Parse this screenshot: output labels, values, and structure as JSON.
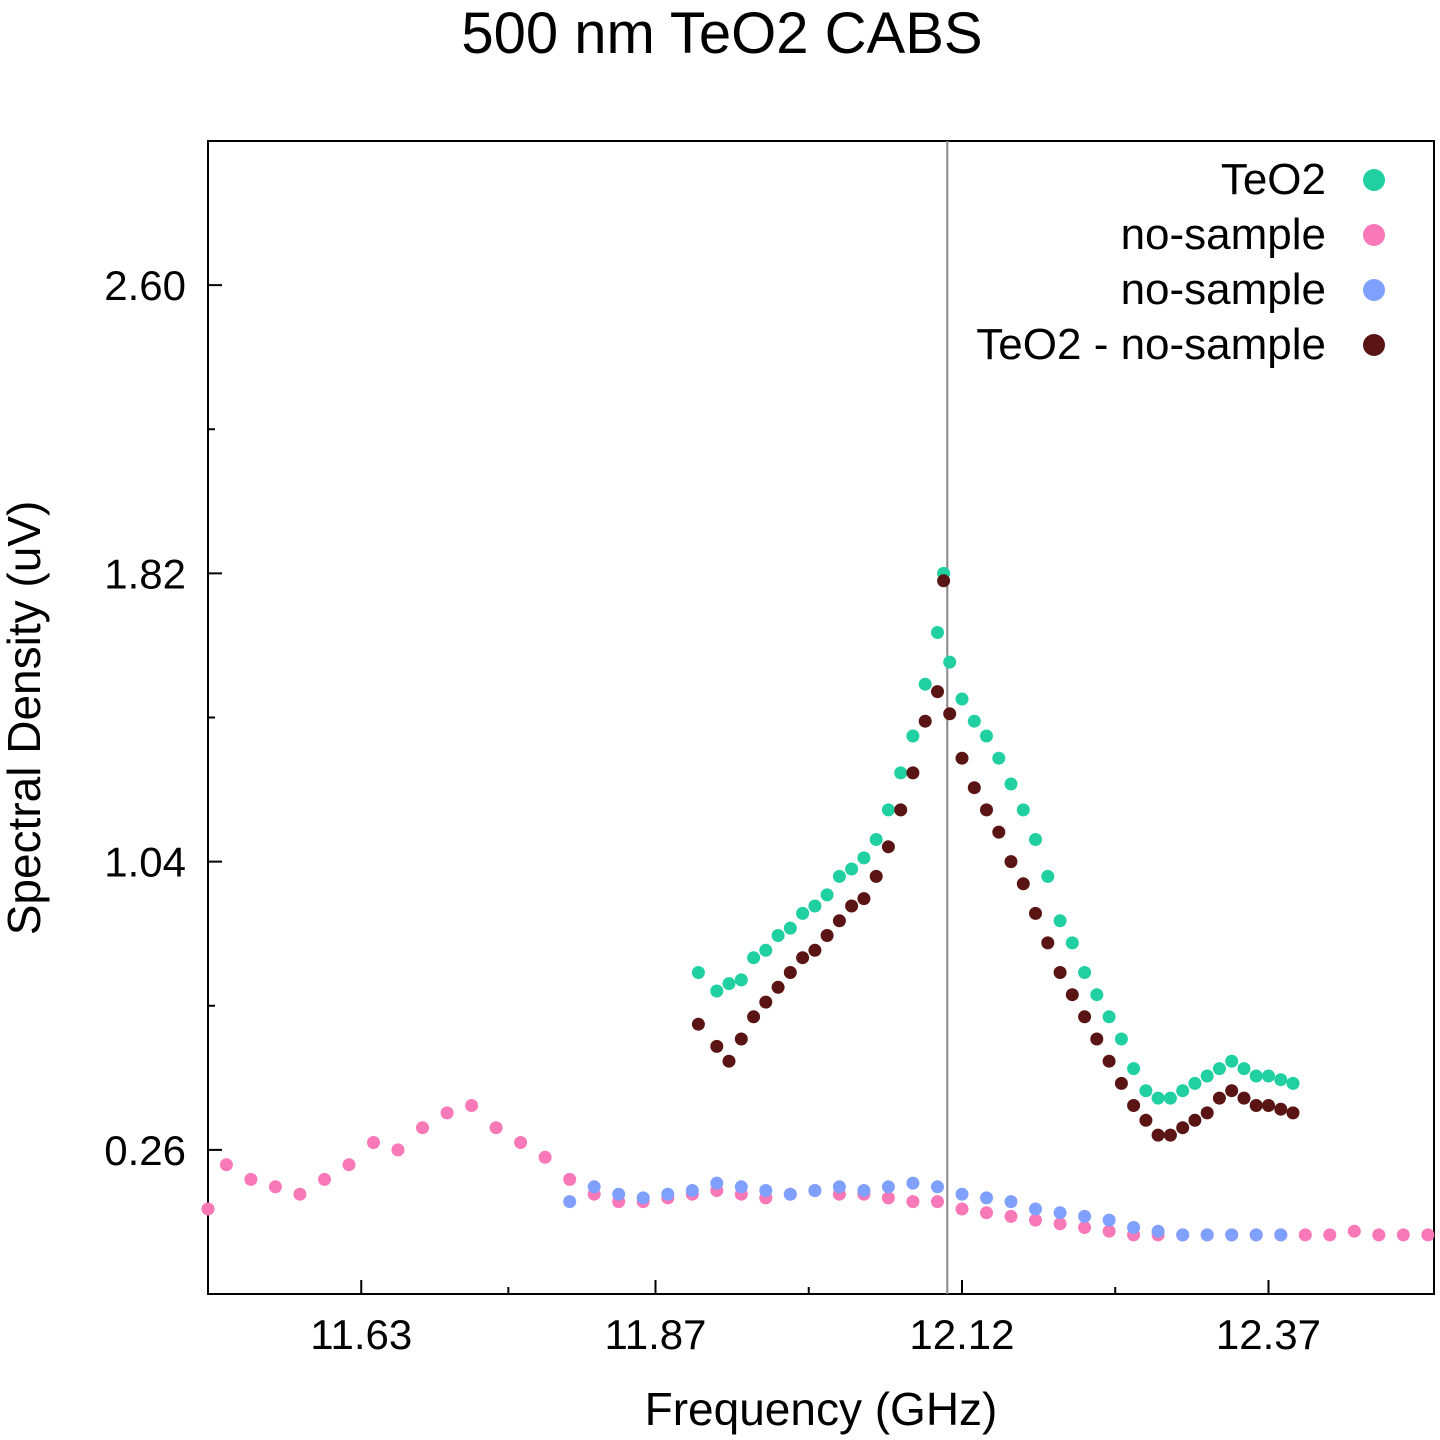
{
  "chart_data": {
    "type": "scatter",
    "title": "500 nm TeO2 CABS",
    "xlabel": "Frequency (GHz)",
    "ylabel": "Spectral Density (uV)",
    "xlim": [
      11.505,
      12.505
    ],
    "ylim": [
      -0.13,
      2.99
    ],
    "x_ticks": [
      "11.63",
      "11.87",
      "12.12",
      "12.37"
    ],
    "y_ticks": [
      "0.26",
      "1.04",
      "1.82",
      "2.60"
    ],
    "grid": false,
    "legend_position": "top-right",
    "vertical_line_x": 12.108,
    "series": [
      {
        "name": "TeO2",
        "color": "#20d0a0",
        "points": [
          [
            11.905,
            0.74
          ],
          [
            11.92,
            0.69
          ],
          [
            11.93,
            0.71
          ],
          [
            11.94,
            0.72
          ],
          [
            11.95,
            0.78
          ],
          [
            11.96,
            0.8
          ],
          [
            11.97,
            0.84
          ],
          [
            11.98,
            0.86
          ],
          [
            11.99,
            0.9
          ],
          [
            12.0,
            0.92
          ],
          [
            12.01,
            0.95
          ],
          [
            12.02,
            1.0
          ],
          [
            12.03,
            1.02
          ],
          [
            12.04,
            1.05
          ],
          [
            12.05,
            1.1
          ],
          [
            12.06,
            1.18
          ],
          [
            12.07,
            1.28
          ],
          [
            12.08,
            1.38
          ],
          [
            12.09,
            1.52
          ],
          [
            12.1,
            1.66
          ],
          [
            12.105,
            1.82
          ],
          [
            12.11,
            1.58
          ],
          [
            12.12,
            1.48
          ],
          [
            12.13,
            1.42
          ],
          [
            12.14,
            1.38
          ],
          [
            12.15,
            1.32
          ],
          [
            12.16,
            1.25
          ],
          [
            12.17,
            1.18
          ],
          [
            12.18,
            1.1
          ],
          [
            12.19,
            1.0
          ],
          [
            12.2,
            0.88
          ],
          [
            12.21,
            0.82
          ],
          [
            12.22,
            0.74
          ],
          [
            12.23,
            0.68
          ],
          [
            12.24,
            0.62
          ],
          [
            12.25,
            0.56
          ],
          [
            12.26,
            0.48
          ],
          [
            12.27,
            0.42
          ],
          [
            12.28,
            0.4
          ],
          [
            12.29,
            0.4
          ],
          [
            12.3,
            0.42
          ],
          [
            12.31,
            0.44
          ],
          [
            12.32,
            0.46
          ],
          [
            12.33,
            0.48
          ],
          [
            12.34,
            0.5
          ],
          [
            12.35,
            0.48
          ],
          [
            12.36,
            0.46
          ],
          [
            12.37,
            0.46
          ],
          [
            12.38,
            0.45
          ],
          [
            12.39,
            0.44
          ]
        ]
      },
      {
        "name": "no-sample",
        "color": "#f878b8",
        "points": [
          [
            11.505,
            0.1
          ],
          [
            11.52,
            0.22
          ],
          [
            11.54,
            0.18
          ],
          [
            11.56,
            0.16
          ],
          [
            11.58,
            0.14
          ],
          [
            11.6,
            0.18
          ],
          [
            11.62,
            0.22
          ],
          [
            11.64,
            0.28
          ],
          [
            11.66,
            0.26
          ],
          [
            11.68,
            0.32
          ],
          [
            11.7,
            0.36
          ],
          [
            11.72,
            0.38
          ],
          [
            11.74,
            0.32
          ],
          [
            11.76,
            0.28
          ],
          [
            11.78,
            0.24
          ],
          [
            11.8,
            0.18
          ],
          [
            11.82,
            0.14
          ],
          [
            11.84,
            0.12
          ],
          [
            11.86,
            0.12
          ],
          [
            11.88,
            0.13
          ],
          [
            11.9,
            0.14
          ],
          [
            11.92,
            0.15
          ],
          [
            11.94,
            0.14
          ],
          [
            11.96,
            0.13
          ],
          [
            11.98,
            0.14
          ],
          [
            12.0,
            0.15
          ],
          [
            12.02,
            0.14
          ],
          [
            12.04,
            0.14
          ],
          [
            12.06,
            0.13
          ],
          [
            12.08,
            0.12
          ],
          [
            12.1,
            0.12
          ],
          [
            12.12,
            0.1
          ],
          [
            12.14,
            0.09
          ],
          [
            12.16,
            0.08
          ],
          [
            12.18,
            0.07
          ],
          [
            12.2,
            0.06
          ],
          [
            12.22,
            0.05
          ],
          [
            12.24,
            0.04
          ],
          [
            12.26,
            0.03
          ],
          [
            12.28,
            0.03
          ],
          [
            12.3,
            0.03
          ],
          [
            12.32,
            0.03
          ],
          [
            12.34,
            0.03
          ],
          [
            12.36,
            0.03
          ],
          [
            12.38,
            0.03
          ],
          [
            12.4,
            0.03
          ],
          [
            12.42,
            0.03
          ],
          [
            12.44,
            0.04
          ],
          [
            12.46,
            0.03
          ],
          [
            12.48,
            0.03
          ],
          [
            12.5,
            0.03
          ]
        ]
      },
      {
        "name": "no-sample",
        "color": "#80a0ff",
        "points": [
          [
            11.8,
            0.12
          ],
          [
            11.82,
            0.16
          ],
          [
            11.84,
            0.14
          ],
          [
            11.86,
            0.13
          ],
          [
            11.88,
            0.14
          ],
          [
            11.9,
            0.15
          ],
          [
            11.92,
            0.17
          ],
          [
            11.94,
            0.16
          ],
          [
            11.96,
            0.15
          ],
          [
            11.98,
            0.14
          ],
          [
            12.0,
            0.15
          ],
          [
            12.02,
            0.16
          ],
          [
            12.04,
            0.15
          ],
          [
            12.06,
            0.16
          ],
          [
            12.08,
            0.17
          ],
          [
            12.1,
            0.16
          ],
          [
            12.12,
            0.14
          ],
          [
            12.14,
            0.13
          ],
          [
            12.16,
            0.12
          ],
          [
            12.18,
            0.1
          ],
          [
            12.2,
            0.09
          ],
          [
            12.22,
            0.08
          ],
          [
            12.24,
            0.07
          ],
          [
            12.26,
            0.05
          ],
          [
            12.28,
            0.04
          ],
          [
            12.3,
            0.03
          ],
          [
            12.32,
            0.03
          ],
          [
            12.34,
            0.03
          ],
          [
            12.36,
            0.03
          ],
          [
            12.38,
            0.03
          ]
        ]
      },
      {
        "name": "TeO2 - no-sample",
        "color": "#5a1414",
        "points": [
          [
            11.905,
            0.6
          ],
          [
            11.92,
            0.54
          ],
          [
            11.93,
            0.5
          ],
          [
            11.94,
            0.56
          ],
          [
            11.95,
            0.62
          ],
          [
            11.96,
            0.66
          ],
          [
            11.97,
            0.7
          ],
          [
            11.98,
            0.74
          ],
          [
            11.99,
            0.78
          ],
          [
            12.0,
            0.8
          ],
          [
            12.01,
            0.84
          ],
          [
            12.02,
            0.88
          ],
          [
            12.03,
            0.92
          ],
          [
            12.04,
            0.94
          ],
          [
            12.05,
            1.0
          ],
          [
            12.06,
            1.08
          ],
          [
            12.07,
            1.18
          ],
          [
            12.08,
            1.28
          ],
          [
            12.09,
            1.42
          ],
          [
            12.1,
            1.5
          ],
          [
            12.105,
            1.8
          ],
          [
            12.11,
            1.44
          ],
          [
            12.12,
            1.32
          ],
          [
            12.13,
            1.24
          ],
          [
            12.14,
            1.18
          ],
          [
            12.15,
            1.12
          ],
          [
            12.16,
            1.04
          ],
          [
            12.17,
            0.98
          ],
          [
            12.18,
            0.9
          ],
          [
            12.19,
            0.82
          ],
          [
            12.2,
            0.74
          ],
          [
            12.21,
            0.68
          ],
          [
            12.22,
            0.62
          ],
          [
            12.23,
            0.56
          ],
          [
            12.24,
            0.5
          ],
          [
            12.25,
            0.44
          ],
          [
            12.26,
            0.38
          ],
          [
            12.27,
            0.34
          ],
          [
            12.28,
            0.3
          ],
          [
            12.29,
            0.3
          ],
          [
            12.3,
            0.32
          ],
          [
            12.31,
            0.34
          ],
          [
            12.32,
            0.36
          ],
          [
            12.33,
            0.4
          ],
          [
            12.34,
            0.42
          ],
          [
            12.35,
            0.4
          ],
          [
            12.36,
            0.38
          ],
          [
            12.37,
            0.38
          ],
          [
            12.38,
            0.37
          ],
          [
            12.39,
            0.36
          ]
        ]
      }
    ]
  }
}
